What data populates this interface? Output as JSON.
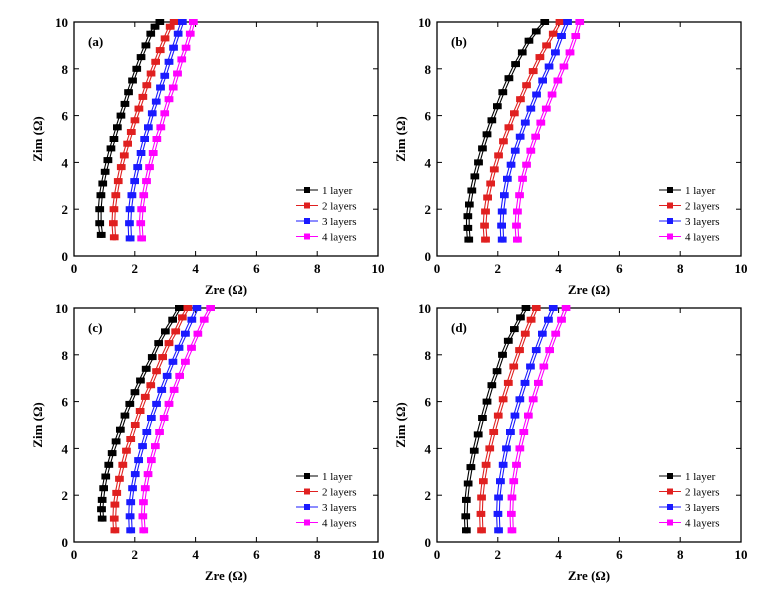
{
  "chart_data": [
    {
      "type": "line",
      "panel_label": "(a)",
      "xlabel": "Zre (Ω)",
      "ylabel": "Zim (Ω)",
      "xlim": [
        0,
        10
      ],
      "ylim": [
        0,
        10
      ],
      "xticks": [
        "0",
        "2",
        "4",
        "6",
        "8",
        "10"
      ],
      "yticks": [
        "0",
        "2",
        "4",
        "6",
        "8",
        "10"
      ],
      "legend_position": "bottom-right",
      "series": [
        {
          "name": "1 layer",
          "color": "#000000",
          "x": [
            0.85,
            0.8,
            0.8,
            0.84,
            0.9,
            0.98,
            1.07,
            1.17,
            1.27,
            1.38,
            1.5,
            1.63,
            1.75,
            1.88,
            2.02,
            2.16,
            2.32,
            2.48,
            2.62,
            2.78
          ],
          "y": [
            0.9,
            1.4,
            2.0,
            2.6,
            3.1,
            3.6,
            4.1,
            4.6,
            5.0,
            5.5,
            6.0,
            6.5,
            7.0,
            7.5,
            8.0,
            8.5,
            9.0,
            9.5,
            9.8,
            10.0
          ]
        },
        {
          "name": "2 layers",
          "color": "#e02020",
          "x": [
            1.28,
            1.25,
            1.27,
            1.33,
            1.41,
            1.51,
            1.61,
            1.72,
            1.84,
            1.96,
            2.09,
            2.22,
            2.35,
            2.49,
            2.64,
            2.79,
            2.95,
            3.12,
            3.25
          ],
          "y": [
            0.8,
            1.4,
            2.0,
            2.6,
            3.2,
            3.8,
            4.3,
            4.8,
            5.3,
            5.8,
            6.3,
            6.8,
            7.3,
            7.8,
            8.3,
            8.8,
            9.3,
            9.8,
            10.0
          ]
        },
        {
          "name": "3 layers",
          "color": "#1a1aff",
          "x": [
            1.8,
            1.78,
            1.8,
            1.86,
            1.95,
            2.05,
            2.16,
            2.28,
            2.4,
            2.53,
            2.66,
            2.8,
            2.94,
            3.08,
            3.23,
            3.38,
            3.52
          ],
          "y": [
            0.75,
            1.4,
            2.0,
            2.6,
            3.2,
            3.8,
            4.4,
            5.0,
            5.5,
            6.1,
            6.6,
            7.2,
            7.7,
            8.3,
            8.9,
            9.5,
            10.0
          ]
        },
        {
          "name": "4 layers",
          "color": "#ff00ff",
          "x": [
            2.18,
            2.15,
            2.18,
            2.25,
            2.34,
            2.44,
            2.56,
            2.68,
            2.81,
            2.94,
            3.08,
            3.22,
            3.36,
            3.5,
            3.64,
            3.78,
            3.88
          ],
          "y": [
            0.75,
            1.4,
            2.0,
            2.6,
            3.2,
            3.8,
            4.4,
            5.0,
            5.5,
            6.1,
            6.7,
            7.2,
            7.8,
            8.4,
            8.9,
            9.5,
            10.0
          ]
        }
      ]
    },
    {
      "type": "line",
      "panel_label": "(b)",
      "xlabel": "Zre (Ω)",
      "ylabel": "Zim (Ω)",
      "xlim": [
        0,
        10
      ],
      "ylim": [
        0,
        10
      ],
      "xticks": [
        "0",
        "2",
        "4",
        "6",
        "8",
        "10"
      ],
      "yticks": [
        "0",
        "2",
        "4",
        "6",
        "8",
        "10"
      ],
      "legend_position": "bottom-right",
      "series": [
        {
          "name": "1 layer",
          "color": "#000000",
          "x": [
            1.0,
            0.97,
            0.97,
            1.02,
            1.1,
            1.2,
            1.32,
            1.45,
            1.6,
            1.76,
            1.94,
            2.12,
            2.32,
            2.54,
            2.76,
            2.98,
            3.22,
            3.5
          ],
          "y": [
            0.7,
            1.2,
            1.7,
            2.2,
            2.8,
            3.4,
            4.0,
            4.6,
            5.2,
            5.8,
            6.4,
            7.0,
            7.6,
            8.2,
            8.7,
            9.2,
            9.6,
            10.0
          ]
        },
        {
          "name": "2 layers",
          "color": "#e02020",
          "x": [
            1.55,
            1.52,
            1.55,
            1.62,
            1.72,
            1.84,
            1.98,
            2.14,
            2.32,
            2.5,
            2.7,
            2.9,
            3.12,
            3.34,
            3.56,
            3.78,
            4.0
          ],
          "y": [
            0.7,
            1.3,
            1.9,
            2.5,
            3.1,
            3.7,
            4.3,
            4.9,
            5.5,
            6.1,
            6.7,
            7.3,
            7.9,
            8.5,
            9.0,
            9.5,
            10.0
          ]
        },
        {
          "name": "3 layers",
          "color": "#1a1aff",
          "x": [
            2.1,
            2.08,
            2.1,
            2.17,
            2.27,
            2.39,
            2.53,
            2.69,
            2.86,
            3.04,
            3.23,
            3.43,
            3.64,
            3.85,
            4.05,
            4.25
          ],
          "y": [
            0.7,
            1.3,
            1.9,
            2.6,
            3.3,
            3.9,
            4.5,
            5.1,
            5.7,
            6.3,
            6.9,
            7.5,
            8.1,
            8.7,
            9.4,
            10.0
          ]
        },
        {
          "name": "4 layers",
          "color": "#ff00ff",
          "x": [
            2.6,
            2.57,
            2.6,
            2.67,
            2.77,
            2.9,
            3.04,
            3.2,
            3.37,
            3.55,
            3.74,
            3.93,
            4.13,
            4.33,
            4.52,
            4.65
          ],
          "y": [
            0.7,
            1.3,
            1.9,
            2.6,
            3.3,
            3.9,
            4.5,
            5.1,
            5.7,
            6.3,
            6.9,
            7.5,
            8.1,
            8.7,
            9.4,
            10.0
          ]
        }
      ]
    },
    {
      "type": "line",
      "panel_label": "(c)",
      "xlabel": "Zre (Ω)",
      "ylabel": "Zim (Ω)",
      "xlim": [
        0,
        10
      ],
      "ylim": [
        0,
        10
      ],
      "xticks": [
        "0",
        "2",
        "4",
        "6",
        "8",
        "10"
      ],
      "yticks": [
        "0",
        "2",
        "4",
        "6",
        "8",
        "10"
      ],
      "legend_position": "bottom-right",
      "series": [
        {
          "name": "1 layer",
          "color": "#000000",
          "x": [
            0.88,
            0.86,
            0.88,
            0.93,
            1.0,
            1.1,
            1.21,
            1.34,
            1.48,
            1.63,
            1.79,
            1.96,
            2.14,
            2.33,
            2.53,
            2.74,
            2.96,
            3.2,
            3.42
          ],
          "y": [
            1.0,
            1.4,
            1.8,
            2.3,
            2.8,
            3.3,
            3.8,
            4.3,
            4.8,
            5.4,
            5.9,
            6.4,
            6.9,
            7.4,
            7.9,
            8.5,
            9.0,
            9.5,
            10.0
          ]
        },
        {
          "name": "2 layers",
          "color": "#e02020",
          "x": [
            1.3,
            1.28,
            1.3,
            1.36,
            1.45,
            1.56,
            1.68,
            1.82,
            1.97,
            2.13,
            2.3,
            2.48,
            2.67,
            2.87,
            3.08,
            3.3,
            3.52,
            3.7
          ],
          "y": [
            0.5,
            1.0,
            1.6,
            2.1,
            2.7,
            3.3,
            3.9,
            4.4,
            5.0,
            5.6,
            6.2,
            6.7,
            7.3,
            7.9,
            8.5,
            9.0,
            9.6,
            10.0
          ]
        },
        {
          "name": "3 layers",
          "color": "#1a1aff",
          "x": [
            1.82,
            1.8,
            1.82,
            1.88,
            1.97,
            2.08,
            2.21,
            2.35,
            2.5,
            2.67,
            2.84,
            3.02,
            3.21,
            3.41,
            3.62,
            3.83,
            4.0
          ],
          "y": [
            0.5,
            1.1,
            1.7,
            2.3,
            2.9,
            3.5,
            4.1,
            4.7,
            5.3,
            5.9,
            6.5,
            7.1,
            7.7,
            8.3,
            8.9,
            9.5,
            10.0
          ]
        },
        {
          "name": "4 layers",
          "color": "#ff00ff",
          "x": [
            2.25,
            2.22,
            2.24,
            2.3,
            2.39,
            2.5,
            2.63,
            2.77,
            2.92,
            3.08,
            3.25,
            3.43,
            3.62,
            3.82,
            4.03,
            4.24,
            4.45
          ],
          "y": [
            0.5,
            1.1,
            1.7,
            2.3,
            2.9,
            3.5,
            4.1,
            4.7,
            5.3,
            5.9,
            6.5,
            7.1,
            7.7,
            8.3,
            8.9,
            9.5,
            10.0
          ]
        }
      ]
    },
    {
      "type": "line",
      "panel_label": "(d)",
      "xlabel": "Zre (Ω)",
      "ylabel": "Zim (Ω)",
      "xlim": [
        0,
        10
      ],
      "ylim": [
        0,
        10
      ],
      "xticks": [
        "0",
        "2",
        "4",
        "6",
        "8",
        "10"
      ],
      "yticks": [
        "0",
        "2",
        "4",
        "6",
        "8",
        "10"
      ],
      "legend_position": "bottom-right",
      "series": [
        {
          "name": "1 layer",
          "color": "#000000",
          "x": [
            0.92,
            0.9,
            0.92,
            0.98,
            1.07,
            1.18,
            1.31,
            1.45,
            1.6,
            1.76,
            1.93,
            2.11,
            2.3,
            2.5,
            2.7,
            2.88
          ],
          "y": [
            0.5,
            1.1,
            1.8,
            2.5,
            3.2,
            3.9,
            4.6,
            5.3,
            6.0,
            6.7,
            7.3,
            8.0,
            8.6,
            9.1,
            9.6,
            10.0
          ]
        },
        {
          "name": "2 layers",
          "color": "#e02020",
          "x": [
            1.42,
            1.4,
            1.42,
            1.48,
            1.57,
            1.69,
            1.82,
            1.97,
            2.13,
            2.3,
            2.48,
            2.67,
            2.86,
            3.05,
            3.22
          ],
          "y": [
            0.5,
            1.2,
            1.9,
            2.6,
            3.3,
            4.0,
            4.7,
            5.4,
            6.1,
            6.8,
            7.5,
            8.2,
            8.9,
            9.5,
            10.0
          ]
        },
        {
          "name": "3 layers",
          "color": "#1a1aff",
          "x": [
            1.98,
            1.96,
            1.98,
            2.04,
            2.13,
            2.24,
            2.37,
            2.52,
            2.68,
            2.85,
            3.03,
            3.22,
            3.42,
            3.62,
            3.78
          ],
          "y": [
            0.5,
            1.2,
            1.9,
            2.6,
            3.3,
            4.0,
            4.7,
            5.4,
            6.1,
            6.8,
            7.5,
            8.2,
            8.9,
            9.5,
            10.0
          ]
        },
        {
          "name": "4 layers",
          "color": "#ff00ff",
          "x": [
            2.42,
            2.4,
            2.42,
            2.48,
            2.57,
            2.68,
            2.81,
            2.96,
            3.12,
            3.29,
            3.47,
            3.66,
            3.86,
            4.05,
            4.2
          ],
          "y": [
            0.5,
            1.2,
            1.9,
            2.6,
            3.3,
            4.0,
            4.7,
            5.4,
            6.1,
            6.8,
            7.5,
            8.2,
            8.9,
            9.5,
            10.0
          ]
        }
      ]
    }
  ]
}
